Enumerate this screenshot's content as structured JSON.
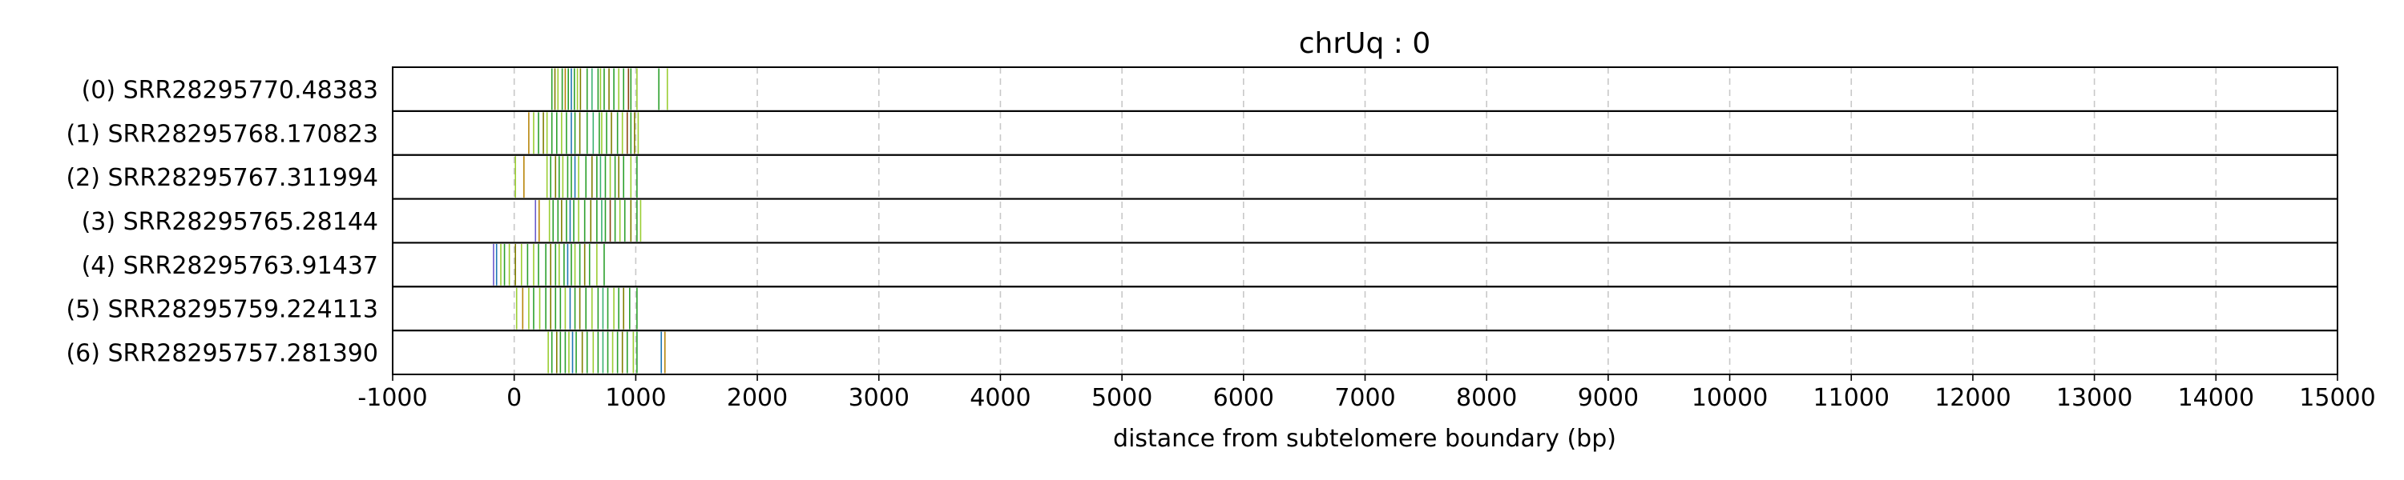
{
  "chart_data": {
    "type": "scatter",
    "title": "chrUq : 0",
    "xlabel": "distance from subtelomere boundary (bp)",
    "xlim": [
      -1000,
      15000
    ],
    "xticks": [
      -1000,
      0,
      1000,
      2000,
      3000,
      4000,
      5000,
      6000,
      7000,
      8000,
      9000,
      10000,
      11000,
      12000,
      13000,
      14000,
      15000
    ],
    "grid": "vertical dashed",
    "colors": [
      "#2ca02c",
      "#7f7f00",
      "#9acd32",
      "#b8860b",
      "#1f77b4",
      "#6a5acd",
      "#8b4513",
      "#3cb371"
    ],
    "tracks": [
      {
        "label": "(0) SRR28295770.48383",
        "marks": [
          {
            "x": 310,
            "c": 0
          },
          {
            "x": 335,
            "c": 1
          },
          {
            "x": 360,
            "c": 2
          },
          {
            "x": 395,
            "c": 0
          },
          {
            "x": 420,
            "c": 3
          },
          {
            "x": 445,
            "c": 0
          },
          {
            "x": 470,
            "c": 4
          },
          {
            "x": 495,
            "c": 0
          },
          {
            "x": 520,
            "c": 2
          },
          {
            "x": 545,
            "c": 1
          },
          {
            "x": 600,
            "c": 0
          },
          {
            "x": 640,
            "c": 7
          },
          {
            "x": 690,
            "c": 0
          },
          {
            "x": 710,
            "c": 2
          },
          {
            "x": 740,
            "c": 0
          },
          {
            "x": 780,
            "c": 1
          },
          {
            "x": 820,
            "c": 0
          },
          {
            "x": 860,
            "c": 2
          },
          {
            "x": 900,
            "c": 0
          },
          {
            "x": 940,
            "c": 6
          },
          {
            "x": 960,
            "c": 0
          },
          {
            "x": 1010,
            "c": 2
          },
          {
            "x": 1190,
            "c": 0
          },
          {
            "x": 1260,
            "c": 2
          }
        ]
      },
      {
        "label": "(1) SRR28295768.170823",
        "marks": [
          {
            "x": 120,
            "c": 3
          },
          {
            "x": 160,
            "c": 2
          },
          {
            "x": 200,
            "c": 0
          },
          {
            "x": 240,
            "c": 1
          },
          {
            "x": 270,
            "c": 2
          },
          {
            "x": 310,
            "c": 0
          },
          {
            "x": 350,
            "c": 0
          },
          {
            "x": 390,
            "c": 2
          },
          {
            "x": 430,
            "c": 0
          },
          {
            "x": 470,
            "c": 4
          },
          {
            "x": 500,
            "c": 0
          },
          {
            "x": 540,
            "c": 1
          },
          {
            "x": 600,
            "c": 0
          },
          {
            "x": 650,
            "c": 7
          },
          {
            "x": 700,
            "c": 0
          },
          {
            "x": 720,
            "c": 2
          },
          {
            "x": 760,
            "c": 0
          },
          {
            "x": 800,
            "c": 1
          },
          {
            "x": 850,
            "c": 0
          },
          {
            "x": 890,
            "c": 2
          },
          {
            "x": 930,
            "c": 6
          },
          {
            "x": 960,
            "c": 0
          },
          {
            "x": 990,
            "c": 1
          },
          {
            "x": 1020,
            "c": 2
          }
        ]
      },
      {
        "label": "(2) SRR28295767.311994",
        "marks": [
          {
            "x": 10,
            "c": 2
          },
          {
            "x": 80,
            "c": 3
          },
          {
            "x": 270,
            "c": 2
          },
          {
            "x": 300,
            "c": 0
          },
          {
            "x": 340,
            "c": 1
          },
          {
            "x": 370,
            "c": 0
          },
          {
            "x": 400,
            "c": 2
          },
          {
            "x": 440,
            "c": 0
          },
          {
            "x": 470,
            "c": 0
          },
          {
            "x": 500,
            "c": 4
          },
          {
            "x": 530,
            "c": 2
          },
          {
            "x": 590,
            "c": 0
          },
          {
            "x": 640,
            "c": 1
          },
          {
            "x": 680,
            "c": 0
          },
          {
            "x": 710,
            "c": 7
          },
          {
            "x": 750,
            "c": 0
          },
          {
            "x": 790,
            "c": 2
          },
          {
            "x": 830,
            "c": 0
          },
          {
            "x": 860,
            "c": 1
          },
          {
            "x": 900,
            "c": 0
          },
          {
            "x": 960,
            "c": 2
          },
          {
            "x": 1010,
            "c": 0
          }
        ]
      },
      {
        "label": "(3) SRR28295765.28144",
        "marks": [
          {
            "x": 175,
            "c": 5
          },
          {
            "x": 205,
            "c": 3
          },
          {
            "x": 290,
            "c": 2
          },
          {
            "x": 320,
            "c": 0
          },
          {
            "x": 360,
            "c": 0
          },
          {
            "x": 390,
            "c": 1
          },
          {
            "x": 430,
            "c": 0
          },
          {
            "x": 460,
            "c": 4
          },
          {
            "x": 490,
            "c": 0
          },
          {
            "x": 530,
            "c": 2
          },
          {
            "x": 580,
            "c": 0
          },
          {
            "x": 630,
            "c": 1
          },
          {
            "x": 680,
            "c": 0
          },
          {
            "x": 720,
            "c": 7
          },
          {
            "x": 750,
            "c": 0
          },
          {
            "x": 790,
            "c": 6
          },
          {
            "x": 830,
            "c": 0
          },
          {
            "x": 870,
            "c": 2
          },
          {
            "x": 910,
            "c": 0
          },
          {
            "x": 960,
            "c": 1
          },
          {
            "x": 1010,
            "c": 0
          },
          {
            "x": 1040,
            "c": 2
          }
        ]
      },
      {
        "label": "(4) SRR28295763.91437",
        "marks": [
          {
            "x": -170,
            "c": 5
          },
          {
            "x": -145,
            "c": 4
          },
          {
            "x": -110,
            "c": 2
          },
          {
            "x": -80,
            "c": 0
          },
          {
            "x": -40,
            "c": 2
          },
          {
            "x": 10,
            "c": 1
          },
          {
            "x": 60,
            "c": 2
          },
          {
            "x": 110,
            "c": 0
          },
          {
            "x": 160,
            "c": 2
          },
          {
            "x": 200,
            "c": 0
          },
          {
            "x": 260,
            "c": 0
          },
          {
            "x": 300,
            "c": 1
          },
          {
            "x": 340,
            "c": 0
          },
          {
            "x": 370,
            "c": 2
          },
          {
            "x": 410,
            "c": 0
          },
          {
            "x": 440,
            "c": 4
          },
          {
            "x": 470,
            "c": 0
          },
          {
            "x": 500,
            "c": 2
          },
          {
            "x": 540,
            "c": 0
          },
          {
            "x": 580,
            "c": 1
          },
          {
            "x": 620,
            "c": 0
          },
          {
            "x": 680,
            "c": 2
          },
          {
            "x": 740,
            "c": 0
          }
        ]
      },
      {
        "label": "(5) SRR28295759.224113",
        "marks": [
          {
            "x": 20,
            "c": 2
          },
          {
            "x": 70,
            "c": 3
          },
          {
            "x": 120,
            "c": 2
          },
          {
            "x": 160,
            "c": 0
          },
          {
            "x": 210,
            "c": 2
          },
          {
            "x": 260,
            "c": 0
          },
          {
            "x": 300,
            "c": 1
          },
          {
            "x": 340,
            "c": 0
          },
          {
            "x": 380,
            "c": 0
          },
          {
            "x": 420,
            "c": 2
          },
          {
            "x": 460,
            "c": 4
          },
          {
            "x": 500,
            "c": 0
          },
          {
            "x": 540,
            "c": 1
          },
          {
            "x": 590,
            "c": 0
          },
          {
            "x": 640,
            "c": 2
          },
          {
            "x": 690,
            "c": 0
          },
          {
            "x": 730,
            "c": 7
          },
          {
            "x": 770,
            "c": 0
          },
          {
            "x": 820,
            "c": 2
          },
          {
            "x": 860,
            "c": 0
          },
          {
            "x": 900,
            "c": 1
          },
          {
            "x": 950,
            "c": 0
          },
          {
            "x": 1010,
            "c": 0
          }
        ]
      },
      {
        "label": "(6) SRR28295757.281390",
        "marks": [
          {
            "x": 280,
            "c": 2
          },
          {
            "x": 310,
            "c": 0
          },
          {
            "x": 350,
            "c": 1
          },
          {
            "x": 380,
            "c": 0
          },
          {
            "x": 420,
            "c": 0
          },
          {
            "x": 450,
            "c": 2
          },
          {
            "x": 480,
            "c": 4
          },
          {
            "x": 510,
            "c": 0
          },
          {
            "x": 560,
            "c": 1
          },
          {
            "x": 600,
            "c": 0
          },
          {
            "x": 650,
            "c": 2
          },
          {
            "x": 690,
            "c": 0
          },
          {
            "x": 730,
            "c": 7
          },
          {
            "x": 770,
            "c": 0
          },
          {
            "x": 810,
            "c": 2
          },
          {
            "x": 850,
            "c": 0
          },
          {
            "x": 890,
            "c": 1
          },
          {
            "x": 930,
            "c": 0
          },
          {
            "x": 980,
            "c": 2
          },
          {
            "x": 1010,
            "c": 0
          },
          {
            "x": 1210,
            "c": 4
          },
          {
            "x": 1240,
            "c": 3
          }
        ]
      }
    ]
  }
}
